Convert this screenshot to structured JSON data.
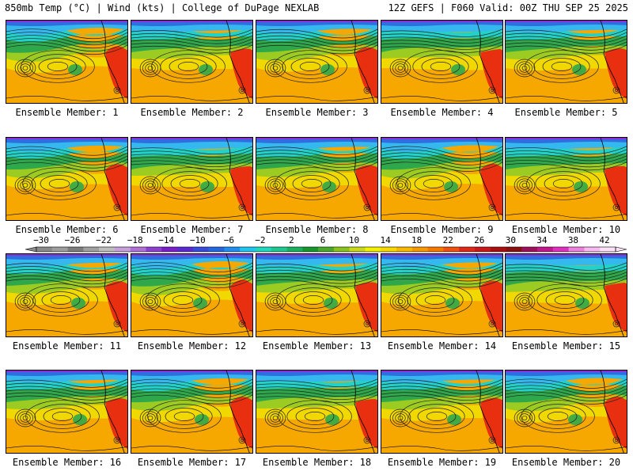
{
  "header": {
    "left": "850mb Temp (°C) | Wind (kts) | College of DuPage NEXLAB",
    "right": "12Z GEFS | F060 Valid: 00Z THU SEP 25 2025"
  },
  "members": [
    "Ensemble Member: 1",
    "Ensemble Member: 2",
    "Ensemble Member: 3",
    "Ensemble Member: 4",
    "Ensemble Member: 5",
    "Ensemble Member: 6",
    "Ensemble Member: 7",
    "Ensemble Member: 8",
    "Ensemble Member: 9",
    "Ensemble Member: 10",
    "Ensemble Member: 11",
    "Ensemble Member: 12",
    "Ensemble Member: 13",
    "Ensemble Member: 14",
    "Ensemble Member: 15",
    "Ensemble Member: 16",
    "Ensemble Member: 17",
    "Ensemble Member: 18",
    "Ensemble Member: 19",
    "Ensemble Member: 20"
  ],
  "colorbar": {
    "tick_labels": [
      "−30",
      "−26",
      "−22",
      "−18",
      "−14",
      "−10",
      "−6",
      "−2",
      "2",
      "6",
      "10",
      "14",
      "18",
      "22",
      "26",
      "30",
      "34",
      "38",
      "42"
    ],
    "colors": [
      "#8a8a8a",
      "#9e9e9e",
      "#7d7d7d",
      "#a0a0a0",
      "#bdbdbd",
      "#c9a0dc",
      "#b070d8",
      "#8f3fd0",
      "#7a1ec8",
      "#5a2ad0",
      "#3a4ad8",
      "#2468e0",
      "#1f8ef0",
      "#22c4f0",
      "#20d8c0",
      "#1ec890",
      "#19b060",
      "#18962e",
      "#4aa82a",
      "#8ac21e",
      "#c8d81a",
      "#f0f000",
      "#f8d800",
      "#f8b800",
      "#f89800",
      "#f87800",
      "#f05010",
      "#e02818",
      "#c81818",
      "#a81010",
      "#8a1010",
      "#a0105a",
      "#c0188c",
      "#e030c0",
      "#f080e0",
      "#f8b8f0",
      "#fce0f8"
    ]
  },
  "map_palette": {
    "purple": "#8a2fd0",
    "blue": "#2f6ee0",
    "lightblue": "#35b8ee",
    "cyan": "#22d2c8",
    "green": "#2ea84a",
    "lightgreen": "#9ccc22",
    "yellow": "#f0e000",
    "orange": "#f7a800",
    "red": "#e83010",
    "contour": "#202020"
  }
}
